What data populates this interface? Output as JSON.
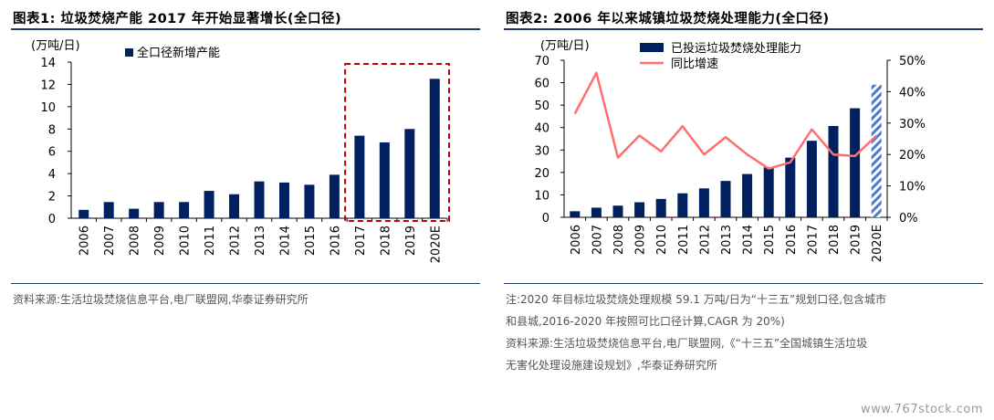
{
  "left": {
    "title": "图表1:  垃圾焚烧产能 2017 年开始显著增长(全口径)",
    "source": "资料来源:生活垃圾焚烧信息平台,电厂联盟网,华泰证券研究所"
  },
  "right": {
    "title": "图表2:  2006 年以来城镇垃圾焚烧处理能力(全口径)",
    "note_lines": [
      "注:2020 年目标垃圾焚烧处理规模 59.1 万吨/日为“十三五”规划口径,包含城市",
      "和县城,2016-2020 年按照可比口径计算,CAGR 为 20%)",
      "资料来源:生活垃圾焚烧信息平台,电厂联盟网,《“十三五”全国城镇生活垃圾",
      "无害化处理设施建设规划》,华泰证券研究所"
    ]
  },
  "watermark": "www.767stock.com",
  "chart_data": [
    {
      "type": "bar",
      "ylabel": "(万吨/日)",
      "ylim": [
        0,
        14
      ],
      "yticks": [
        0,
        2,
        4,
        6,
        8,
        10,
        12,
        14
      ],
      "categories": [
        "2006",
        "2007",
        "2008",
        "2009",
        "2010",
        "2011",
        "2012",
        "2013",
        "2014",
        "2015",
        "2016",
        "2017",
        "2018",
        "2019",
        "2020E"
      ],
      "series": [
        {
          "name": "全口径新增产能",
          "color": "#002060",
          "values": [
            0.75,
            1.45,
            0.85,
            1.45,
            1.45,
            2.45,
            2.15,
            3.3,
            3.2,
            3.0,
            3.9,
            7.4,
            6.8,
            8.0,
            12.5
          ]
        }
      ],
      "highlight": {
        "from": "2017",
        "to": "2020E",
        "style": "dashed-box",
        "color": "#c00000"
      },
      "legend": "top-left"
    },
    {
      "type": "bar+line",
      "ylabel": "(万吨/日)",
      "ylim": [
        0,
        70
      ],
      "yticks": [
        0,
        10,
        20,
        30,
        40,
        50,
        60,
        70
      ],
      "y2lim": [
        0,
        50
      ],
      "y2ticks": [
        "0%",
        "10%",
        "20%",
        "30%",
        "40%",
        "50%"
      ],
      "categories": [
        "2006",
        "2007",
        "2008",
        "2009",
        "2010",
        "2011",
        "2012",
        "2013",
        "2014",
        "2015",
        "2016",
        "2017",
        "2018",
        "2019",
        "2020E"
      ],
      "series": [
        {
          "name": "已投运垃圾焚烧处理能力",
          "type": "bar",
          "color": "#002060",
          "values": [
            2.7,
            4.3,
            5.2,
            6.7,
            8.2,
            10.7,
            12.9,
            16.2,
            19.3,
            22.3,
            26.6,
            34.1,
            40.7,
            48.6,
            59.1
          ],
          "projected_last": true
        },
        {
          "name": "同比增速",
          "type": "line",
          "axis": "right",
          "color": "#ff6f6f",
          "values": [
            33,
            46,
            19,
            26,
            21,
            29,
            20,
            25.5,
            20,
            15.5,
            17.5,
            28,
            20,
            19.5,
            26
          ],
          "unit": "%"
        }
      ],
      "legend": "top-left"
    }
  ]
}
